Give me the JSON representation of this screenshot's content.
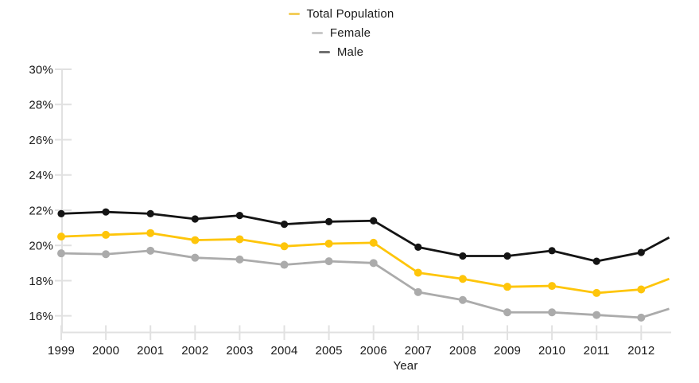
{
  "legend": {
    "items": [
      {
        "label": "Total Population",
        "swatch_color": "#F3CE5C"
      },
      {
        "label": "Female",
        "swatch_color": "#C9C9C9"
      },
      {
        "label": "Male",
        "swatch_color": "#707070"
      }
    ]
  },
  "x_axis": {
    "title": "Year",
    "tick_labels": [
      "1999",
      "2000",
      "2001",
      "2002",
      "2003",
      "2004",
      "2005",
      "2006",
      "2007",
      "2008",
      "2009",
      "2010",
      "2011",
      "2012"
    ]
  },
  "y_axis": {
    "tick_labels": [
      "30%",
      "28%",
      "26%",
      "24%",
      "22%",
      "20%",
      "18%",
      "16%"
    ],
    "tick_values": [
      30,
      28,
      26,
      24,
      22,
      20,
      18,
      16
    ]
  },
  "colors": {
    "axis": "#E1E1E1",
    "text": "#1a1a1a",
    "background": "#ffffff"
  },
  "chart_data": {
    "type": "line",
    "title": "",
    "xlabel": "Year",
    "ylabel": "",
    "x": [
      1999,
      2000,
      2001,
      2002,
      2003,
      2004,
      2005,
      2006,
      2007,
      2008,
      2009,
      2010,
      2011,
      2012
    ],
    "ylim": [
      15.5,
      30
    ],
    "yticks": [
      30,
      28,
      26,
      24,
      22,
      20,
      18,
      16
    ],
    "grid": "off",
    "legend_position": "top-center",
    "series": [
      {
        "name": "Total Population",
        "color": "#FEC50A",
        "dot_r": 5,
        "values": [
          20.5,
          20.6,
          20.7,
          20.3,
          20.35,
          19.95,
          20.1,
          20.15,
          18.45,
          18.1,
          17.65,
          17.7,
          17.3,
          17.5
        ],
        "edge_value": 18.1
      },
      {
        "name": "Female",
        "color": "#ABABAB",
        "dot_r": 5,
        "values": [
          19.55,
          19.5,
          19.7,
          19.3,
          19.2,
          18.9,
          19.1,
          19.0,
          17.35,
          16.9,
          16.2,
          16.2,
          16.05,
          15.9
        ],
        "edge_value": 16.4
      },
      {
        "name": "Male",
        "color": "#141414",
        "dot_r": 4.6,
        "values": [
          21.8,
          21.9,
          21.8,
          21.5,
          21.7,
          21.2,
          21.35,
          21.4,
          19.9,
          19.4,
          19.4,
          19.7,
          19.1,
          19.6
        ],
        "edge_value": 20.45
      }
    ]
  }
}
